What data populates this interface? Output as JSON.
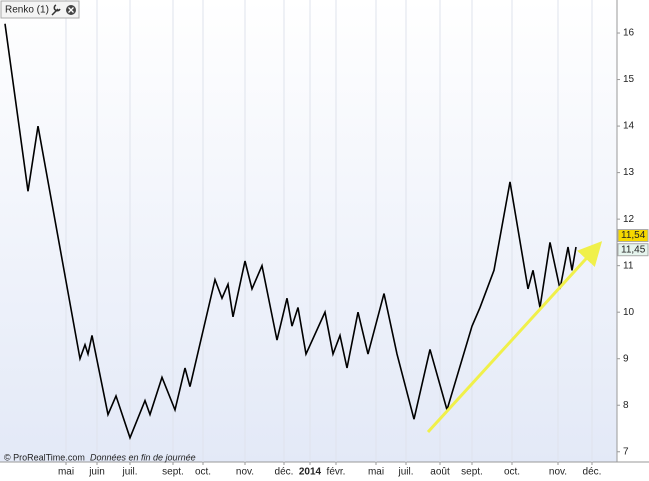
{
  "chart_data": {
    "type": "line",
    "source": "© ProRealTime.com",
    "note": "Données en fin de journée",
    "xlim": [
      0,
      612
    ],
    "ylim": [
      6.78,
      16.28
    ],
    "yticks": [
      7,
      8,
      9,
      10,
      11,
      12,
      13,
      14,
      15,
      16
    ],
    "xticks": [
      {
        "value": 61,
        "label": "mai"
      },
      {
        "value": 92,
        "label": "juin"
      },
      {
        "value": 125,
        "label": "juil."
      },
      {
        "value": 168,
        "label": "sept."
      },
      {
        "value": 198,
        "label": "oct."
      },
      {
        "value": 240,
        "label": "nov."
      },
      {
        "value": 279,
        "label": "déc."
      },
      {
        "value": 305,
        "label": "2014"
      },
      {
        "value": 331,
        "label": "févr."
      },
      {
        "value": 371,
        "label": "mai"
      },
      {
        "value": 401,
        "label": "juil."
      },
      {
        "value": 435,
        "label": "août"
      },
      {
        "value": 467,
        "label": "sept."
      },
      {
        "value": 507,
        "label": "oct."
      },
      {
        "value": 553,
        "label": "nov."
      },
      {
        "value": 587,
        "label": "déc."
      }
    ],
    "grid": true,
    "price_labels": [
      {
        "value": 11.54,
        "label": "11,54",
        "color": "#f5d800"
      },
      {
        "value": 11.45,
        "label": "11,45",
        "color": "#e6f5ee"
      }
    ],
    "x": [
      0,
      23,
      33,
      75,
      80,
      83,
      87,
      103,
      111,
      125,
      140,
      145,
      157,
      170,
      180,
      185,
      210,
      217,
      223,
      228,
      240,
      247,
      257,
      272,
      282,
      287,
      293,
      301,
      320,
      328,
      335,
      342,
      353,
      363,
      379,
      392,
      409,
      425,
      442,
      467,
      475,
      482,
      489,
      505,
      523,
      528,
      535,
      545,
      555,
      563,
      567,
      571
    ],
    "series": [
      {
        "name": "Renko (1)",
        "color": "#000000",
        "values": [
          16.2,
          12.6,
          14.0,
          9.0,
          9.3,
          9.1,
          9.5,
          7.8,
          8.2,
          7.3,
          8.1,
          7.8,
          8.6,
          7.9,
          8.8,
          8.4,
          10.7,
          10.3,
          10.6,
          9.9,
          11.1,
          10.5,
          11.0,
          9.4,
          10.3,
          9.7,
          10.1,
          9.1,
          10.0,
          9.1,
          9.5,
          8.8,
          10.0,
          9.1,
          10.4,
          9.1,
          7.7,
          9.2,
          7.9,
          9.7,
          10.1,
          10.5,
          10.9,
          12.8,
          10.5,
          10.9,
          10.1,
          11.5,
          10.5,
          11.4,
          10.9,
          11.4
        ]
      }
    ]
  }
}
